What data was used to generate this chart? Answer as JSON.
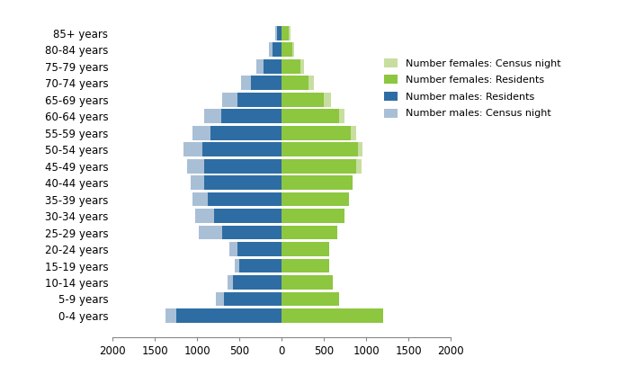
{
  "age_groups": [
    "0-4 years",
    "5-9 years",
    "10-14 years",
    "15-19 years",
    "20-24 years",
    "25-29 years",
    "30-34 years",
    "35-39 years",
    "40-44 years",
    "45-49 years",
    "50-54 years",
    "55-59 years",
    "60-64 years",
    "65-69 years",
    "70-74 years",
    "75-79 years",
    "80-84 years",
    "85+ years"
  ],
  "males_residents": [
    1250,
    680,
    580,
    500,
    520,
    700,
    800,
    880,
    920,
    920,
    940,
    840,
    720,
    520,
    360,
    220,
    110,
    55
  ],
  "males_census_night": [
    1380,
    780,
    640,
    560,
    620,
    980,
    1020,
    1060,
    1080,
    1120,
    1160,
    1060,
    920,
    700,
    480,
    300,
    150,
    80
  ],
  "females_residents": [
    1200,
    680,
    600,
    560,
    560,
    660,
    740,
    800,
    840,
    880,
    900,
    820,
    680,
    500,
    320,
    220,
    130,
    80
  ],
  "females_census_night": [
    1200,
    680,
    600,
    560,
    560,
    660,
    740,
    800,
    840,
    940,
    960,
    880,
    740,
    580,
    380,
    260,
    150,
    100
  ],
  "color_males_residents": "#2e6da4",
  "color_males_census_night": "#a9bfd6",
  "color_females_residents": "#8dc63f",
  "color_females_census_night": "#c8dea0",
  "xlim": [
    -2000,
    2000
  ],
  "xticks": [
    -2000,
    -1500,
    -1000,
    -500,
    0,
    500,
    1000,
    1500,
    2000
  ],
  "xtick_labels": [
    "2000",
    "1500",
    "1000",
    "500",
    "0",
    "500",
    "1000",
    "1500",
    "2000"
  ],
  "legend_labels": [
    "Number females: Census night",
    "Number females: Residents",
    "Number males: Residents",
    "Number males: Census night"
  ],
  "legend_colors": [
    "#c8dea0",
    "#8dc63f",
    "#2e6da4",
    "#a9bfd6"
  ]
}
